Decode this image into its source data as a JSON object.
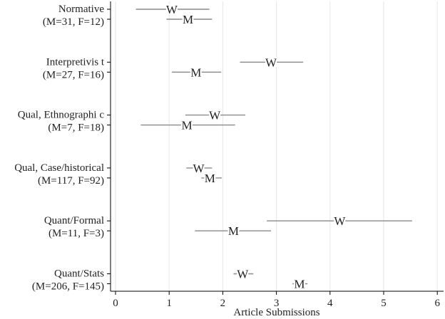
{
  "chart_data": {
    "type": "scatter",
    "title": "",
    "xlabel": "Article Submissions",
    "ylabel": "",
    "xlim": [
      0,
      6
    ],
    "xticks": [
      0,
      1,
      2,
      3,
      4,
      5,
      6
    ],
    "grid": "vertical",
    "legend": "none",
    "colors": {
      "interval": "#8a8a8a",
      "marker": "#222222",
      "axis": "#000000",
      "grid": "#e6e6e6"
    },
    "categories": [
      {
        "name": "Normative",
        "counts": "(M=31, F=12)"
      },
      {
        "name": "Interpretivis t",
        "counts": "(M=27, F=16)"
      },
      {
        "name": "Qual, Ethnographi c",
        "counts": "(M=7, F=18)"
      },
      {
        "name": "Qual, Case/historical",
        "counts": "(M=117, F=92)"
      },
      {
        "name": "Quant/Formal",
        "counts": "(M=11, F=3)"
      },
      {
        "name": "Quant/Stats",
        "counts": "(M=206, F=145)"
      }
    ],
    "series": [
      {
        "name": "W",
        "points": [
          {
            "category": "Normative",
            "value": 1.05,
            "low": 0.38,
            "high": 1.75
          },
          {
            "category": "Interpretivis t",
            "value": 2.9,
            "low": 2.32,
            "high": 3.5
          },
          {
            "category": "Qual, Ethnographi c",
            "value": 1.85,
            "low": 1.3,
            "high": 2.42
          },
          {
            "category": "Qual, Case/historical",
            "value": 1.55,
            "low": 1.32,
            "high": 1.8
          },
          {
            "category": "Quant/Formal",
            "value": 4.18,
            "low": 2.82,
            "high": 5.53
          },
          {
            "category": "Quant/Stats",
            "value": 2.37,
            "low": 2.2,
            "high": 2.57
          }
        ]
      },
      {
        "name": "M",
        "points": [
          {
            "category": "Normative",
            "value": 1.35,
            "low": 0.95,
            "high": 1.8
          },
          {
            "category": "Interpretivis t",
            "value": 1.5,
            "low": 1.05,
            "high": 1.97
          },
          {
            "category": "Qual, Ethnographi c",
            "value": 1.33,
            "low": 0.47,
            "high": 2.23
          },
          {
            "category": "Qual, Case/historical",
            "value": 1.76,
            "low": 1.6,
            "high": 1.98
          },
          {
            "category": "Quant/Formal",
            "value": 2.2,
            "low": 1.48,
            "high": 2.9
          },
          {
            "category": "Quant/Stats",
            "value": 3.43,
            "low": 3.3,
            "high": 3.58
          }
        ]
      }
    ]
  }
}
